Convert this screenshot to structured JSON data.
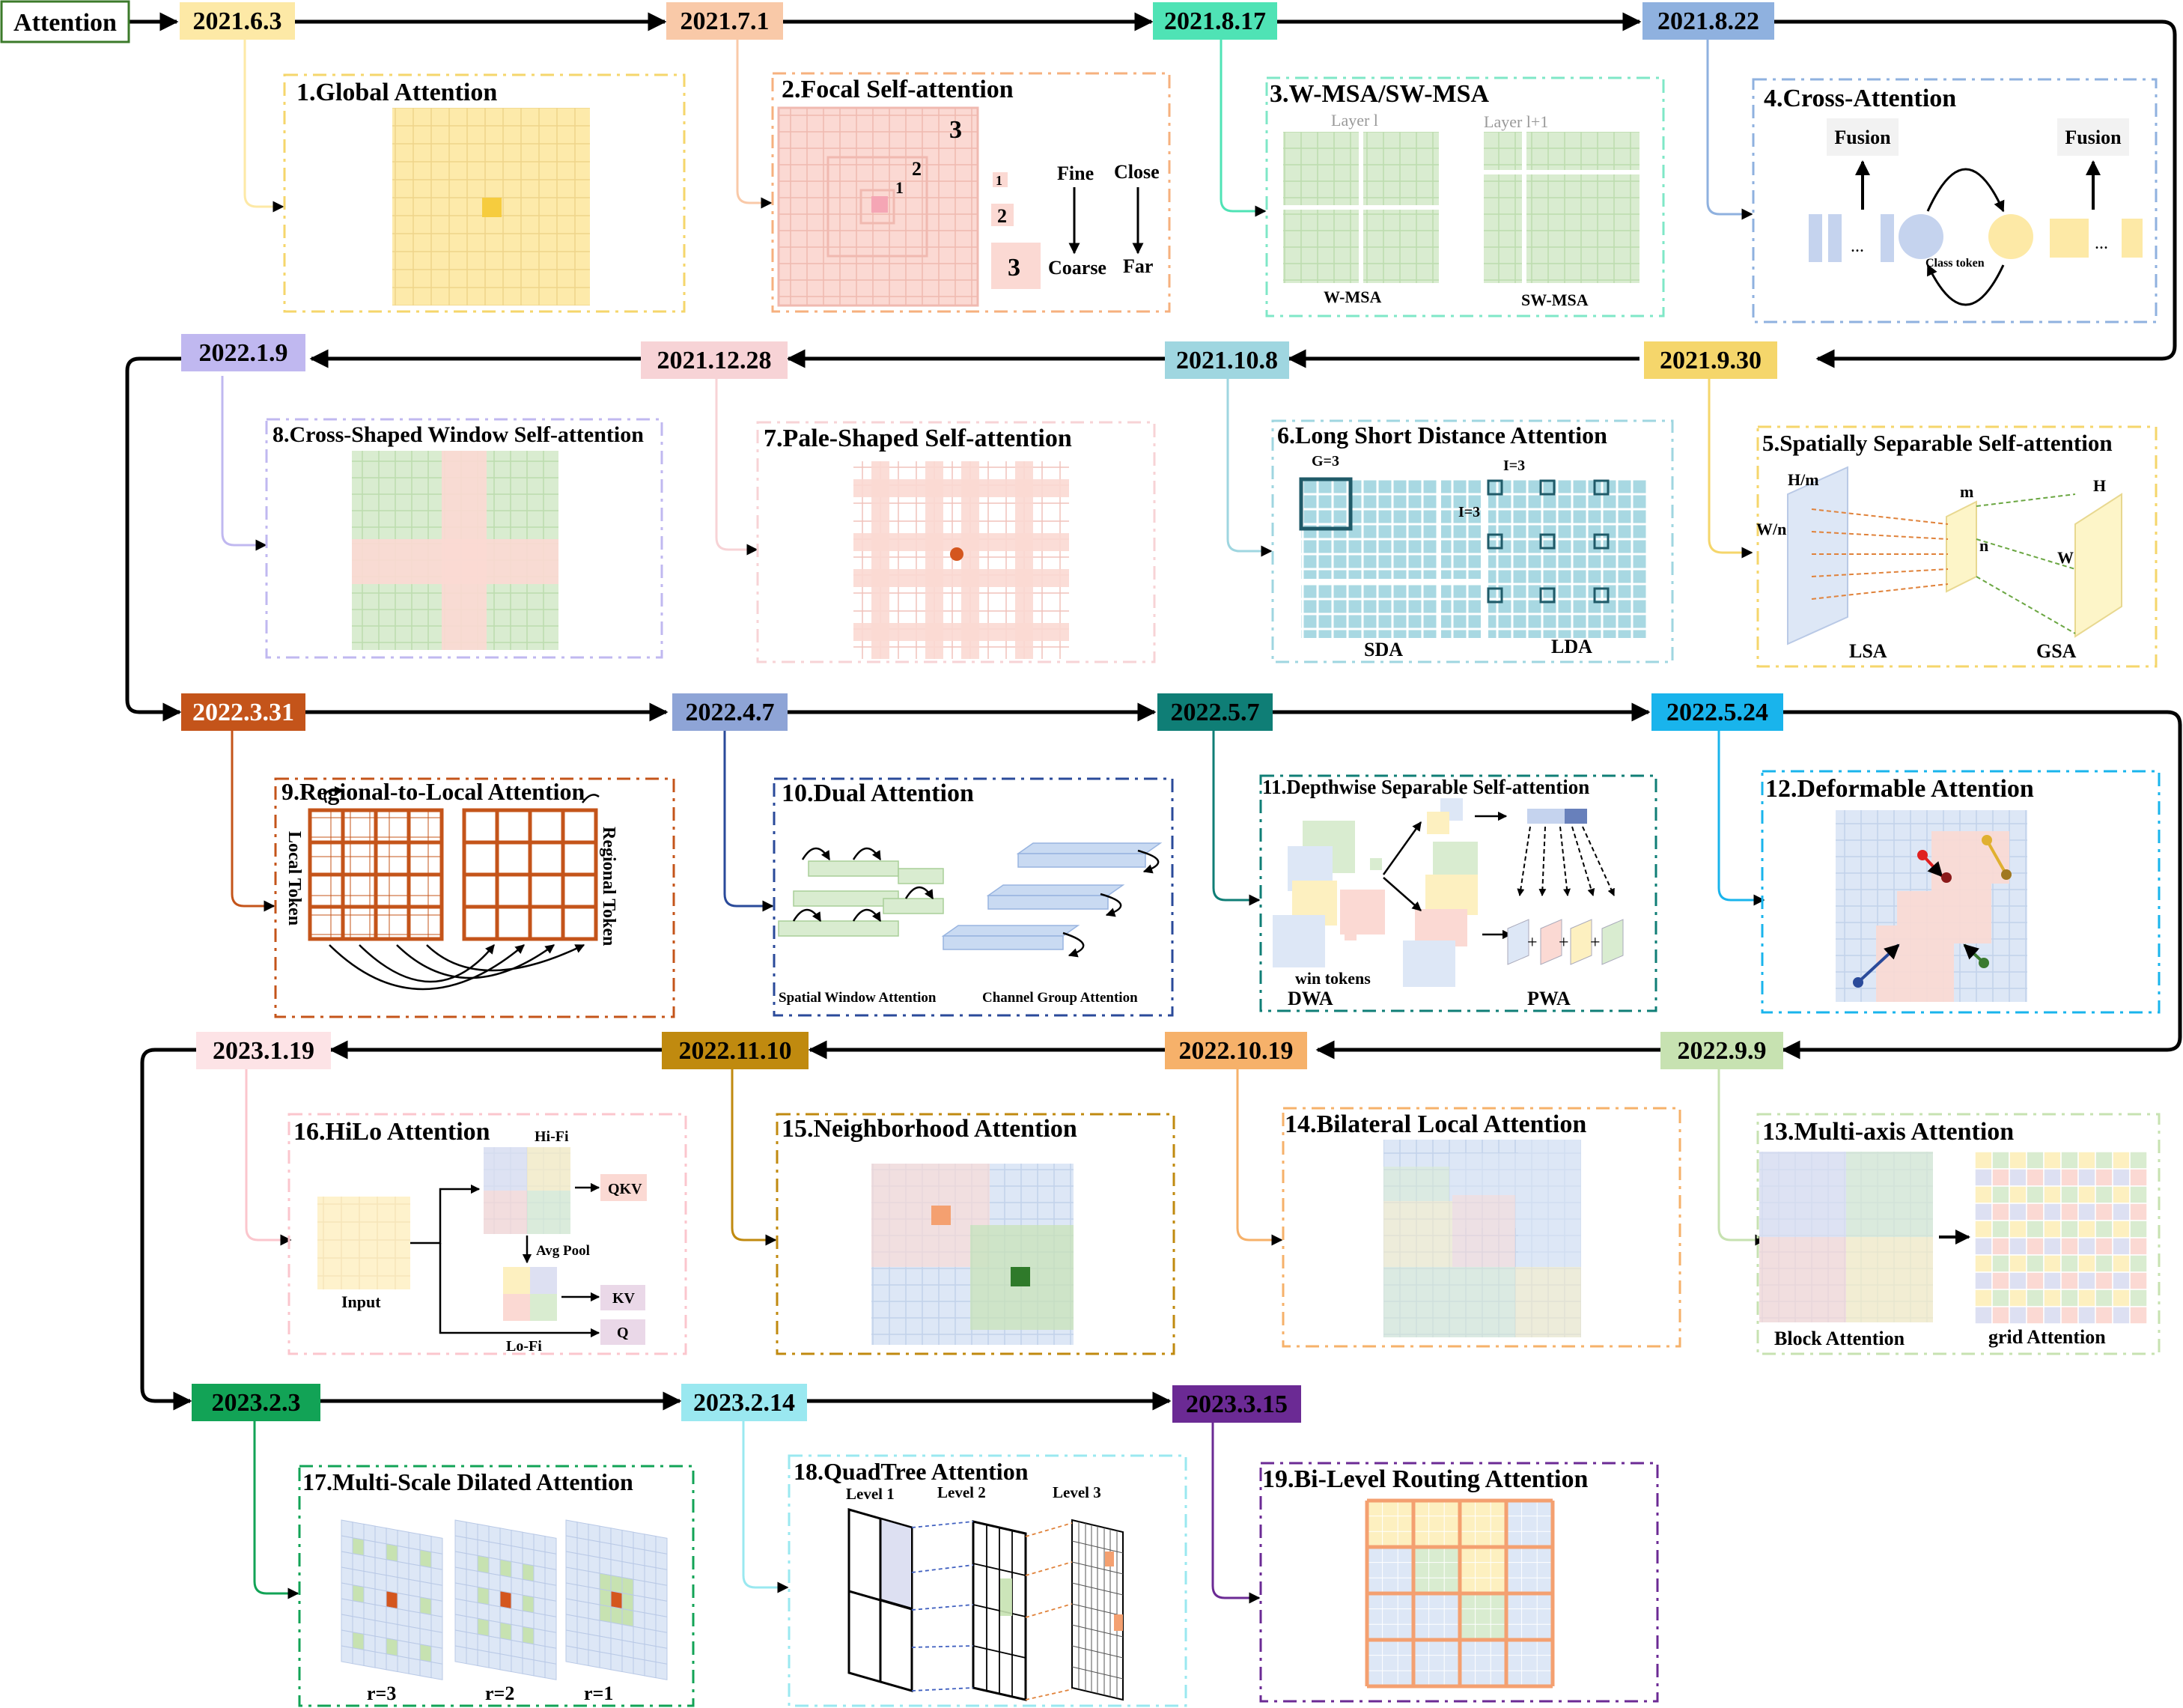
{
  "start_label": "Attention",
  "dates": [
    "2021.6.3",
    "2021.7.1",
    "2021.8.17",
    "2021.8.22",
    "2021.9.30",
    "2021.10.8",
    "2021.12.28",
    "2022.1.9",
    "2022.3.31",
    "2022.4.7",
    "2022.5.7",
    "2022.5.24",
    "2022.9.9",
    "2022.10.19",
    "2022.11.10",
    "2023.1.19",
    "2023.2.3",
    "2023.2.14",
    "2023.3.15"
  ],
  "titles": [
    "1.Global Attention",
    "2.Focal Self-attention",
    "3.W-MSA/SW-MSA",
    "4.Cross-Attention",
    "5.Spatially Separable Self-attention",
    "6.Long Short Distance Attention",
    "7.Pale-Shaped Self-attention",
    "8.Cross-Shaped Window Self-attention",
    "9.Regional-to-Local Attention",
    "10.Dual Attention",
    "11.Depthwise Separable Self-attention",
    "12.Deformable Attention",
    "13.Multi-axis Attention",
    "14.Bilateral Local Attention",
    "15.Neighborhood Attention",
    "16.HiLo Attention",
    "17.Multi-Scale Dilated Attention",
    "18.QuadTree Attention",
    "19.Bi-Level Routing Attention"
  ],
  "labels": {
    "focal": {
      "n3": "3",
      "n2": "2",
      "n1": "1",
      "s1": "1",
      "s2": "2",
      "s3": "3",
      "fine": "Fine",
      "coarse": "Coarse",
      "close": "Close",
      "far": "Far"
    },
    "wmsa": {
      "layer_l": "Layer l",
      "layer_l1": "Layer l+1",
      "w": "W-MSA",
      "sw": "SW-MSA"
    },
    "cross": {
      "fusion": "Fusion",
      "dots": "...",
      "cls": "Class token"
    },
    "ssa": {
      "hm": "H/m",
      "wn": "W/n",
      "m": "m",
      "n": "n",
      "h": "H",
      "w": "W",
      "lsa": "LSA",
      "gsa": "GSA"
    },
    "lsda": {
      "g": "G=3",
      "i1": "I=3",
      "i2": "I=3",
      "sda": "SDA",
      "lda": "LDA"
    },
    "rla": {
      "local": "Local Token",
      "regional": "Regional Token"
    },
    "dual": {
      "sw": "Spatial Window Attention",
      "cg": "Channel Group Attention"
    },
    "dsa": {
      "win": "win tokens",
      "dwa": "DWA",
      "pwa": "PWA",
      "plus": "+"
    },
    "maxis": {
      "block": "Block Attention",
      "grid": "grid Attention"
    },
    "hilo": {
      "hifi": "Hi-Fi",
      "qkv": "QKV",
      "avg": "Avg Pool",
      "input": "Input",
      "kv": "KV",
      "q": "Q",
      "lofi": "Lo-Fi"
    },
    "msda": {
      "r3": "r=3",
      "r2": "r=2",
      "r1": "r=1"
    },
    "quad": {
      "l1": "Level 1",
      "l2": "Level 2",
      "l3": "Level 3"
    }
  },
  "colors": {
    "yellow": "#fde9a6",
    "peach": "#f9c9a8",
    "mint": "#4fe3b5",
    "steel": "#8fb1df",
    "gold": "#f5d66b",
    "teal": "#9fd6e0",
    "pink": "#f7d3d6",
    "lilac": "#c0b8f0",
    "rust": "#c4541a",
    "slate": "#8ea4d6",
    "darkteal": "#0f7e76",
    "sky": "#19b4ec",
    "lightgreen": "#c7e2b1",
    "orange": "#f6b16a",
    "olive": "#c08a0f",
    "palepink": "#fde3e6",
    "green": "#12a356",
    "aqua": "#9ae8f0",
    "purple": "#6b2a94"
  }
}
